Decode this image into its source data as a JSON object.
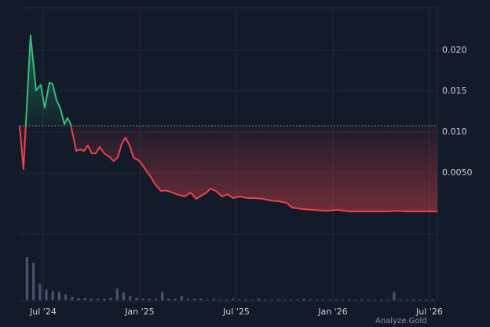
{
  "chart_data": {
    "type": "baseline",
    "x": [
      -1.46,
      -1.22,
      -0.78,
      -0.44,
      -0.15,
      0.1,
      0.39,
      0.59,
      0.83,
      1.07,
      1.32,
      1.51,
      1.71,
      2.05,
      2.29,
      2.54,
      2.78,
      3.02,
      3.27,
      3.51,
      3.8,
      4.15,
      4.39,
      4.63,
      4.88,
      5.12,
      5.37,
      5.61,
      6.0,
      6.34,
      6.68,
      6.98,
      7.32,
      7.56,
      7.9,
      8.29,
      8.78,
      9.17,
      9.51,
      9.9,
      10.15,
      10.39,
      10.73,
      11.12,
      11.46,
      11.8,
      12.2,
      12.68,
      13.17,
      13.66,
      14.15,
      14.63,
      15.12,
      15.46,
      16.1,
      16.83,
      17.56,
      18.29,
      19.02,
      19.76,
      20.49,
      21.22,
      21.95,
      22.68,
      23.66,
      24.49
    ],
    "values": [
      0.01077,
      0.00548,
      0.02183,
      0.0151,
      0.01577,
      0.01298,
      0.01606,
      0.01587,
      0.01394,
      0.01288,
      0.01096,
      0.01173,
      0.01096,
      0.00769,
      0.00788,
      0.00769,
      0.00837,
      0.0074,
      0.0074,
      0.00817,
      0.0074,
      0.00692,
      0.00644,
      0.00692,
      0.00856,
      0.00933,
      0.00837,
      0.00692,
      0.00644,
      0.00548,
      0.00452,
      0.00356,
      0.00279,
      0.00288,
      0.00269,
      0.0024,
      0.00212,
      0.0026,
      0.00183,
      0.00231,
      0.0026,
      0.00308,
      0.00279,
      0.00212,
      0.0024,
      0.00192,
      0.00212,
      0.00192,
      0.00192,
      0.00183,
      0.00163,
      0.00154,
      0.00135,
      0.00077,
      0.00058,
      0.00048,
      0.00038,
      0.00048,
      0.00029,
      0.00029,
      0.00029,
      0.00029,
      0.00038,
      0.00029,
      0.00029,
      0.00029
    ],
    "baseline": 0.01077,
    "color_up": "#2fbf7f",
    "color_down": "#e8434e",
    "xlim": [
      -1.46,
      24.49
    ],
    "xticks": [
      {
        "value": 0,
        "label": "Jul '24"
      },
      {
        "value": 6,
        "label": "Jan '25"
      },
      {
        "value": 12,
        "label": "Jul '25"
      },
      {
        "value": 18,
        "label": "Jan '26"
      },
      {
        "value": 24,
        "label": "Jul '26"
      }
    ],
    "ylim": [
      -0.00173,
      0.0252
    ],
    "yticks": [
      {
        "value": 0.005,
        "label": "0.0050"
      },
      {
        "value": 0.01,
        "label": "0.010"
      },
      0.015,
      {
        "value": 0.02,
        "label": "0.020"
      }
    ],
    "grid": true,
    "volume": {
      "color": "#4a5272",
      "x": [
        -1.0,
        -0.6,
        -0.2,
        0.2,
        0.6,
        1.0,
        1.4,
        1.8,
        2.2,
        2.6,
        3.0,
        3.4,
        3.8,
        4.2,
        4.6,
        5.0,
        5.4,
        5.8,
        6.2,
        6.6,
        7.0,
        7.4,
        7.8,
        8.2,
        8.6,
        9.0,
        9.4,
        9.8,
        10.2,
        10.6,
        11.0,
        11.4,
        11.8,
        12.2,
        12.6,
        13.0,
        13.4,
        13.8,
        14.2,
        14.6,
        15.0,
        15.4,
        15.8,
        16.2,
        16.6,
        17.0,
        17.4,
        17.8,
        18.2,
        18.6,
        19.0,
        19.4,
        19.8,
        20.2,
        20.6,
        21.0,
        21.4,
        21.8,
        22.2,
        22.6,
        23.0,
        23.4,
        23.8,
        24.2
      ],
      "values": [
        52,
        45,
        20,
        13,
        11,
        10,
        7,
        4,
        3,
        3,
        2,
        2,
        2,
        3,
        14,
        9,
        5,
        3,
        2,
        2,
        2,
        10,
        2,
        2,
        5,
        2,
        2,
        2,
        1,
        2,
        1,
        1,
        2,
        1,
        1,
        1,
        2,
        1,
        1,
        1,
        1,
        1,
        1,
        2,
        1,
        1,
        1,
        1,
        1,
        1,
        1,
        1,
        1,
        1,
        1,
        1,
        1,
        10,
        1,
        1,
        1,
        1,
        1,
        1
      ]
    },
    "watermark": "Analyze.Gold"
  }
}
